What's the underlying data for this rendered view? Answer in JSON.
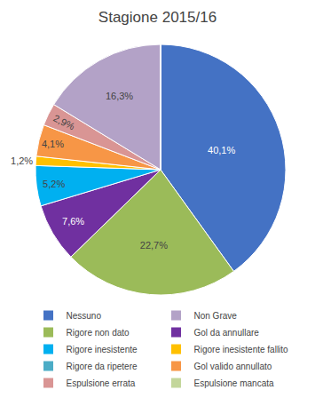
{
  "chart_data": {
    "type": "pie",
    "title": "Stagione 2015/16",
    "categories": [
      "Nessuno",
      "Rigore non dato",
      "Gol da annullare",
      "Rigore inesistente",
      "Rigore inesistente fallito",
      "Gol valido annullato",
      "Espulsione errata",
      "Non Grave",
      "Rigore da ripetere",
      "Espulsione mancata"
    ],
    "values": [
      40.1,
      22.7,
      7.6,
      5.2,
      1.2,
      4.1,
      2.9,
      16.3,
      0.0,
      0.0
    ],
    "value_labels": [
      "40,1%",
      "22,7%",
      "7,6%",
      "5,2%",
      "1,2%",
      "4,1%",
      "2,9%",
      "16,3%",
      null,
      null
    ],
    "colors": [
      "#4472c4",
      "#9bbb59",
      "#7030a0",
      "#00b0f0",
      "#ffc000",
      "#f79646",
      "#d99594",
      "#b3a2c7",
      "#4bacc6",
      "#c3d69b"
    ],
    "data_labels": true,
    "legend": "bottom",
    "legend_entries": [
      "Nessuno",
      "Non Grave",
      "Rigore non dato",
      "Gol da annullare",
      "Rigore inesistente",
      "Rigore inesistente fallito",
      "Rigore da ripetere",
      "Gol valido annullato",
      "Espulsione errata",
      "Espulsione mancata"
    ]
  }
}
